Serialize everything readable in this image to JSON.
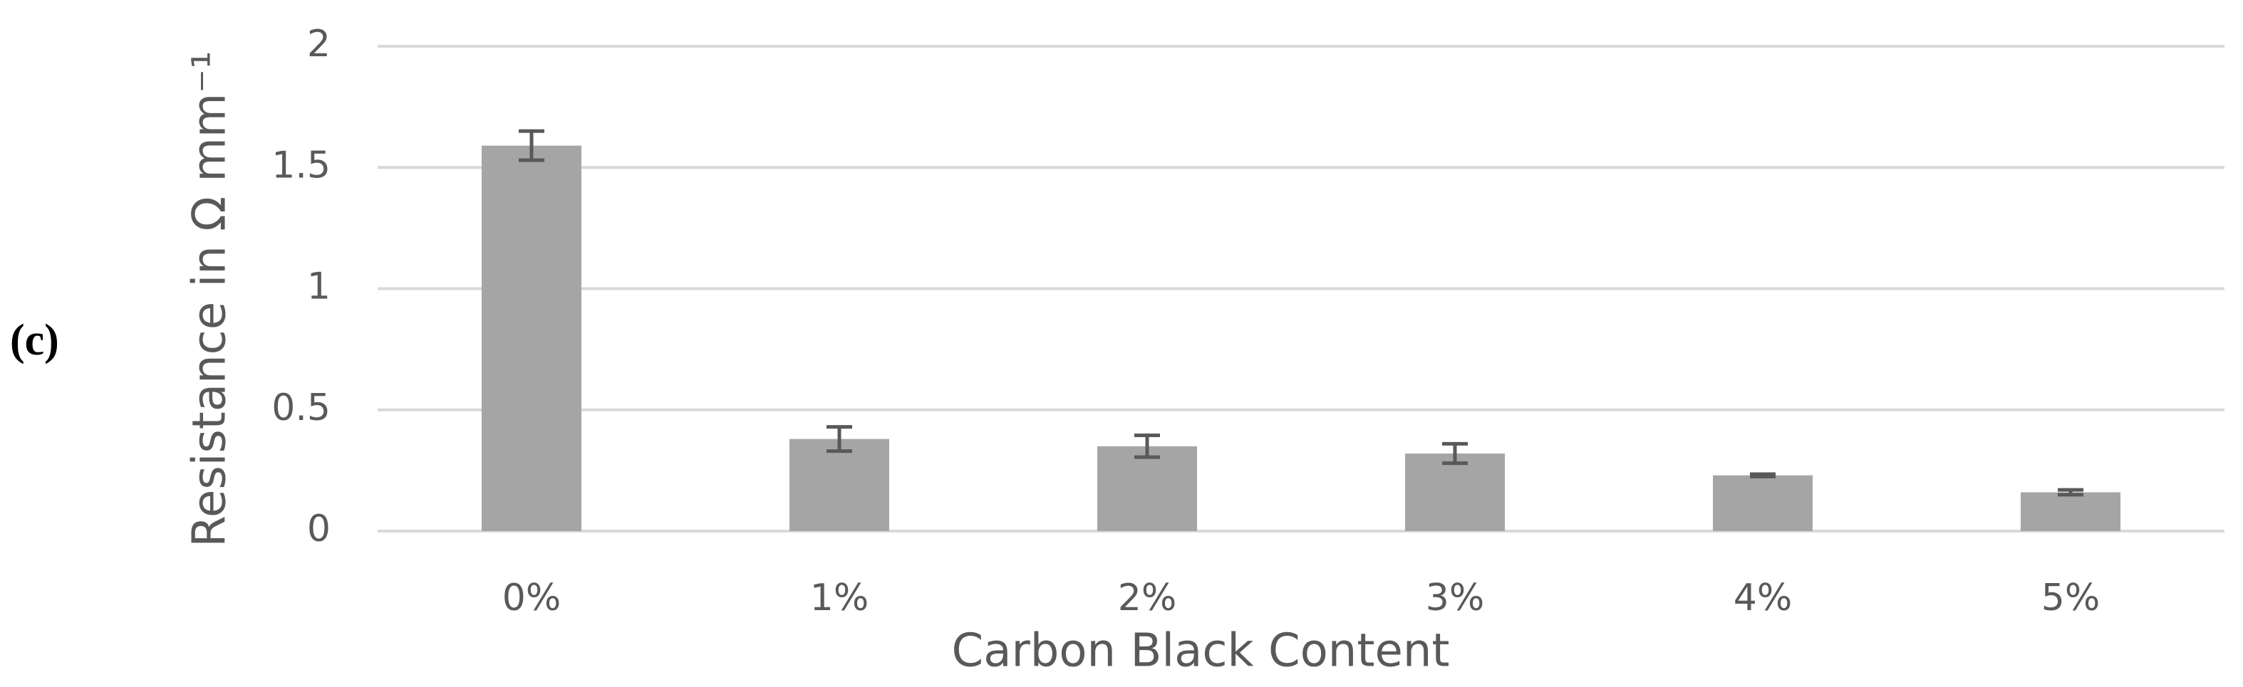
{
  "panel_label": "(c)",
  "chart_data": {
    "type": "bar",
    "x_label": "Carbon Black Content",
    "y_label": "Resistance in Ω mm⁻¹",
    "categories": [
      "0%",
      "1%",
      "2%",
      "3%",
      "4%",
      "5%"
    ],
    "values": [
      1.59,
      0.38,
      0.35,
      0.32,
      0.23,
      0.16
    ],
    "errors": [
      0.06,
      0.05,
      0.045,
      0.04,
      0.005,
      0.01
    ],
    "color": "#a5a5a5",
    "error_color": "#595959",
    "ylim": [
      0,
      2
    ],
    "yticks": [
      0,
      0.5,
      1,
      1.5,
      2
    ],
    "grid": true
  }
}
